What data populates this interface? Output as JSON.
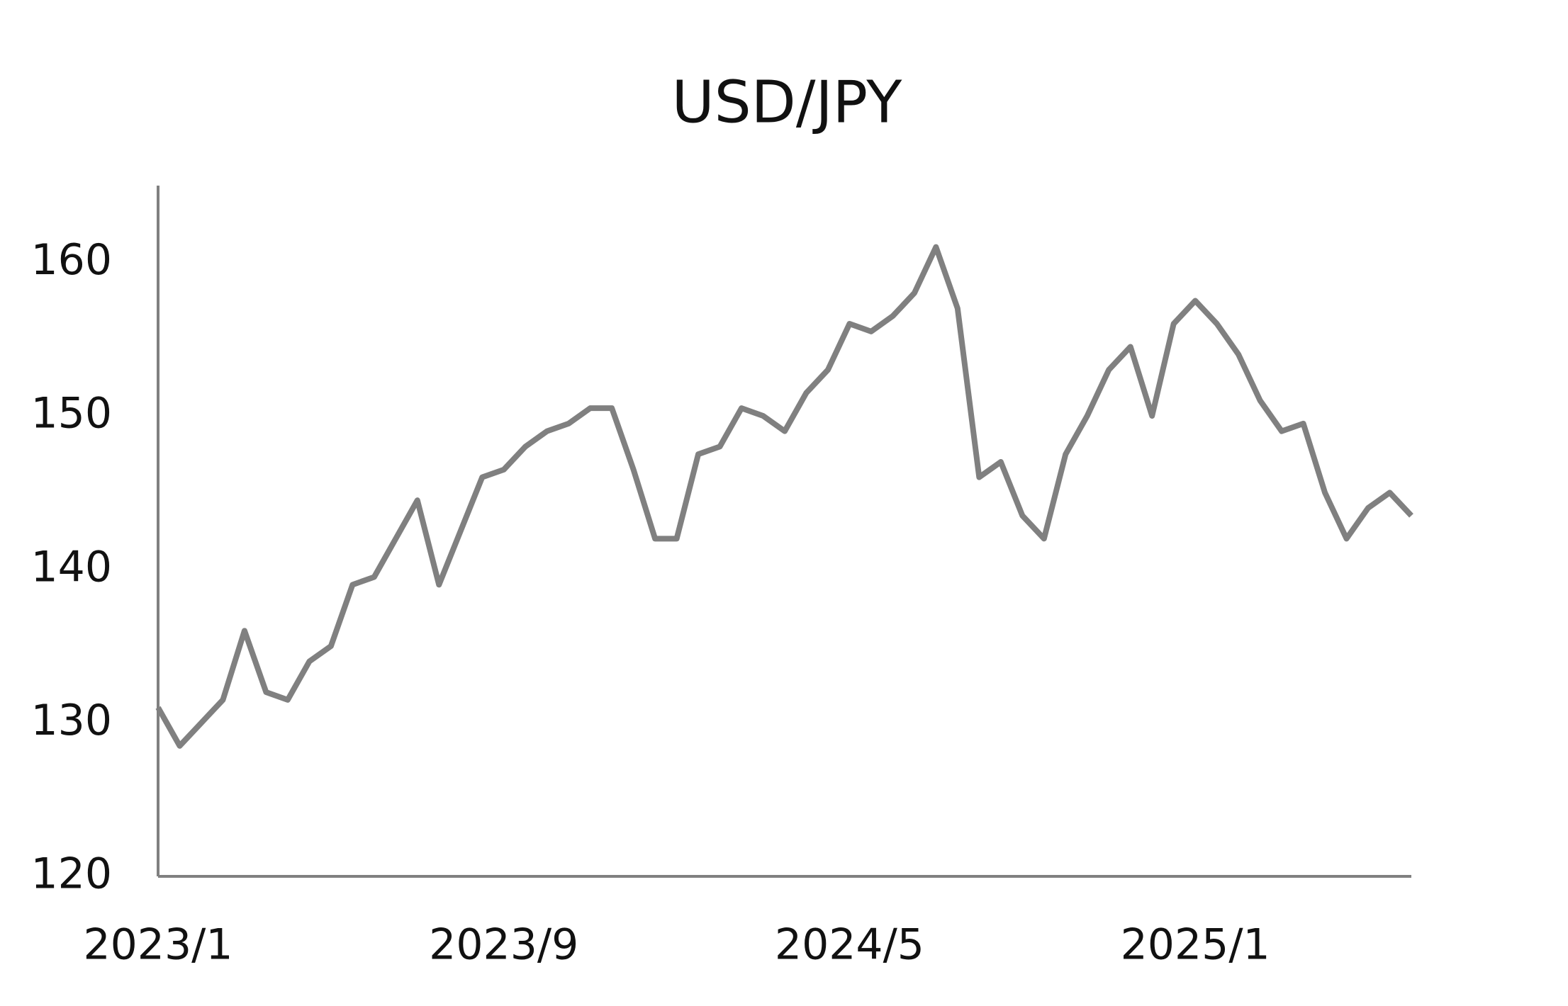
{
  "chart_data": {
    "type": "line",
    "title": "USD/JPY",
    "categories": [
      "2023/1",
      null,
      null,
      null,
      null,
      null,
      null,
      null,
      null,
      null,
      null,
      null,
      null,
      null,
      null,
      null,
      "2023/9",
      null,
      null,
      null,
      null,
      null,
      null,
      null,
      null,
      null,
      null,
      null,
      null,
      null,
      null,
      null,
      "2024/5",
      null,
      null,
      null,
      null,
      null,
      null,
      null,
      null,
      null,
      null,
      null,
      null,
      null,
      null,
      null,
      "2025/1",
      null,
      null,
      null,
      null,
      null,
      null,
      null,
      null,
      null,
      null
    ],
    "series": [
      {
        "name": "USD/JPY",
        "color": "#808080",
        "values": [
          131,
          128.5,
          130,
          131.5,
          136,
          132,
          131.5,
          134,
          135,
          139,
          139.5,
          142,
          144.5,
          139,
          142.5,
          146,
          146.5,
          148,
          149,
          149.5,
          150.5,
          150.5,
          146.5,
          142,
          142,
          147.5,
          148,
          150.5,
          150,
          149,
          151.5,
          153,
          156,
          155.5,
          156.5,
          158,
          161,
          157,
          146,
          147,
          143.5,
          142,
          147.5,
          150,
          153,
          154.5,
          150,
          156,
          157.5,
          156,
          154,
          151,
          149,
          149.5,
          145,
          142,
          144,
          145,
          143.5
        ]
      }
    ],
    "ylim": [
      120,
      165
    ],
    "yticks": [
      120,
      130,
      140,
      150,
      160
    ],
    "grid": false
  }
}
